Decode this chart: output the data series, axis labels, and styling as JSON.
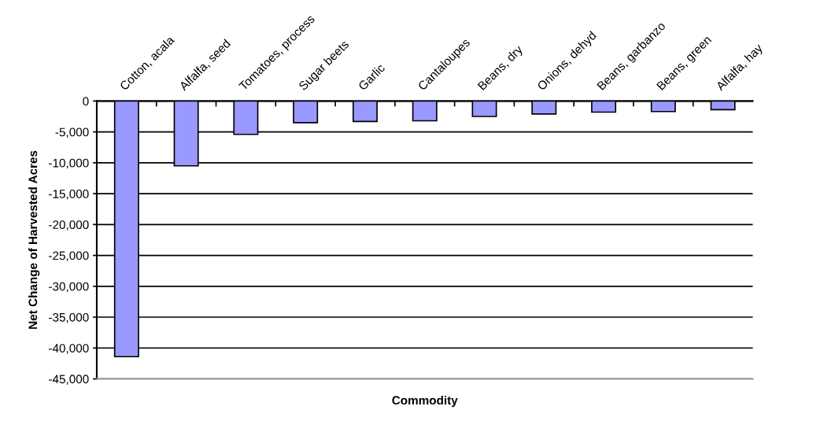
{
  "chart_data": {
    "type": "bar",
    "xlabel": "Commodity",
    "ylabel": "Net Change of Harvested Acres",
    "categories": [
      "Cotton, acala",
      "Alfalfa, seed",
      "Tomatoes, process",
      "Sugar beets",
      "Garlic",
      "Cantaloupes",
      "Beans, dry",
      "Onions, dehyd",
      "Beans, garbanzo",
      "Beans, green",
      "Alfalfa, hay"
    ],
    "values": [
      -41400,
      -10500,
      -5400,
      -3500,
      -3300,
      -3200,
      -2500,
      -2100,
      -1800,
      -1700,
      -1400
    ],
    "color": "#9999ff",
    "ylim": [
      -45000,
      0
    ],
    "yticks": [
      0,
      {
        "value": -5000,
        "label": "-5,000"
      },
      {
        "value": -10000,
        "label": "-10,000"
      },
      {
        "value": -15000,
        "label": "-15,000"
      },
      {
        "value": -20000,
        "label": "-20,000"
      },
      {
        "value": -25000,
        "label": "-25,000"
      },
      {
        "value": -30000,
        "label": "-30,000"
      },
      {
        "value": -35000,
        "label": "-35,000"
      },
      {
        "value": -40000,
        "label": "-40,000"
      },
      {
        "value": -45000,
        "label": "-45,000"
      }
    ],
    "grid": "y",
    "legend": false
  }
}
